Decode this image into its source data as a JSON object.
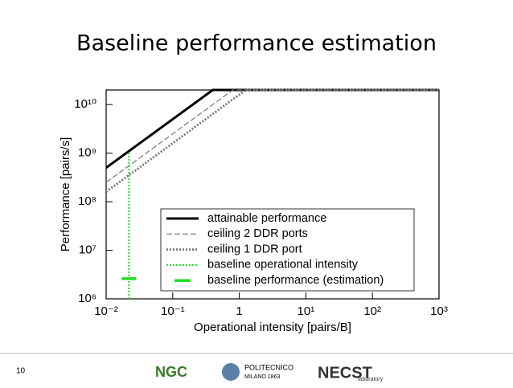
{
  "slide_title": "Baseline performance estimation",
  "chart_data": {
    "type": "line",
    "xlabel": "Operational intensity [pairs/B]",
    "ylabel": "Performance [pairs/s]",
    "xscale": "log",
    "yscale": "log",
    "xlim": [
      0.01,
      1000
    ],
    "ylim": [
      1000000,
      20000000000
    ],
    "xticks": [
      {
        "value": 0.01,
        "label": "10⁻²"
      },
      {
        "value": 0.1,
        "label": "10⁻¹"
      },
      1,
      {
        "value": 10,
        "label": "10¹"
      },
      {
        "value": 100,
        "label": "10²"
      },
      {
        "value": 1000,
        "label": "10³"
      }
    ],
    "yticks": [
      {
        "value": 1000000,
        "label": "10⁶"
      },
      {
        "value": 10000000,
        "label": "10⁷"
      },
      {
        "value": 100000000,
        "label": "10⁸"
      },
      {
        "value": 1000000000,
        "label": "10⁹"
      },
      {
        "value": 10000000000,
        "label": "10¹⁰"
      }
    ],
    "legend": "lower right",
    "series": [
      {
        "name": "attainable performance",
        "color": "#000000",
        "style": "solid",
        "x": [
          0.01,
          0.4,
          1000
        ],
        "values": [
          500000000,
          20000000000,
          20000000000
        ]
      },
      {
        "name": "ceiling 2 DDR ports",
        "color": "#777777",
        "style": "dashed",
        "x": [
          0.01,
          0.8,
          1000
        ],
        "values": [
          250000000,
          20000000000,
          20000000000
        ]
      },
      {
        "name": "ceiling 1 DDR port",
        "color": "#777777",
        "style": "dotted",
        "x": [
          0.01,
          1.25,
          1000
        ],
        "values": [
          160000000,
          20000000000,
          20000000000
        ]
      },
      {
        "name": "baseline operational intensity",
        "color": "#22dd22",
        "style": "greendot",
        "x": [
          0.022,
          0.022
        ],
        "values": [
          1000000,
          1100000000
        ]
      },
      {
        "name": "baseline performance (estimation)",
        "color": "#22dd22",
        "style": "marker",
        "x": [
          0.022
        ],
        "values": [
          2600000
        ]
      }
    ]
  },
  "footer": {
    "page": "10",
    "logo1": "NGC",
    "logo2": "POLITECNICO",
    "logo2_sub": "MILANO 1863",
    "logo3": "NECST",
    "logo3_sub": "laboratory"
  }
}
